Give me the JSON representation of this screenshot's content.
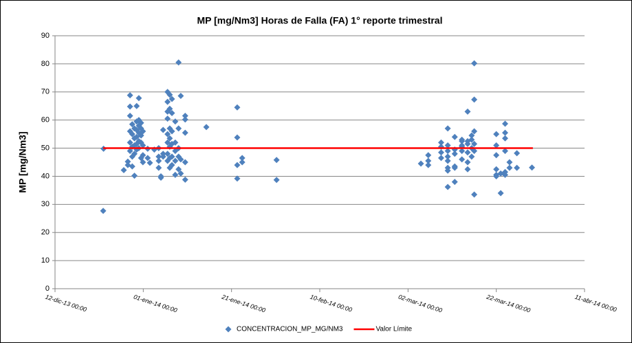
{
  "chart_data": {
    "type": "scatter",
    "title": "MP [mg/Nm3] Horas de Falla (FA) 1° reporte trimestral",
    "ylabel": "MP [mg/Nm3]",
    "xlim": [
      "2013-12-12T00:00",
      "2014-04-11T00:00"
    ],
    "xticks": [
      {
        "value": "2013-12-12T00:00",
        "label": "12-dic-13 00:00"
      },
      {
        "value": "2014-01-01T00:00",
        "label": "01-ene-14 00:00"
      },
      {
        "value": "2014-01-21T00:00",
        "label": "21-ene-14 00:00"
      },
      {
        "value": "2014-02-10T00:00",
        "label": "10-feb-14 00:00"
      },
      {
        "value": "2014-03-02T00:00",
        "label": "02-mar-14 00:00"
      },
      {
        "value": "2014-03-22T00:00",
        "label": "22-mar-14 00:00"
      },
      {
        "value": "2014-04-11T00:00",
        "label": "11-abr-14 00:00"
      }
    ],
    "ylim": [
      0,
      90
    ],
    "yticks": [
      0,
      10,
      20,
      30,
      40,
      50,
      60,
      70,
      80,
      90
    ],
    "grid": true,
    "legend": "bottom",
    "series": [
      {
        "name": "CONCENTRACION_MP_MG/NM3",
        "color": "#4f81bd",
        "x": [
          "2013-12-22T22:00",
          "2013-12-23T00:00",
          "2013-12-27T14:00",
          "2013-12-28T12:00",
          "2013-12-28T12:00",
          "2013-12-29T00:00",
          "2013-12-29T00:00",
          "2013-12-29T00:00",
          "2013-12-29T00:00",
          "2013-12-29T00:00",
          "2013-12-29T00:00",
          "2013-12-29T12:00",
          "2013-12-29T12:00",
          "2013-12-29T12:00",
          "2013-12-29T12:00",
          "2013-12-29T12:00",
          "2013-12-30T00:00",
          "2013-12-30T00:00",
          "2013-12-30T00:00",
          "2013-12-30T00:00",
          "2013-12-30T00:00",
          "2013-12-30T12:00",
          "2013-12-30T12:00",
          "2013-12-30T12:00",
          "2013-12-30T12:00",
          "2013-12-30T12:00",
          "2013-12-30T12:00",
          "2013-12-31T00:00",
          "2013-12-31T00:00",
          "2013-12-31T00:00",
          "2013-12-31T00:00",
          "2013-12-31T00:00",
          "2013-12-31T00:00",
          "2013-12-31T12:00",
          "2013-12-31T12:00",
          "2013-12-31T12:00",
          "2013-12-31T12:00",
          "2013-12-31T12:00",
          "2013-12-31T22:00",
          "2013-12-31T22:00",
          "2013-12-31T22:00",
          "2013-12-31T22:00",
          "2014-01-02T00:00",
          "2014-01-02T00:00",
          "2014-01-02T12:00",
          "2014-01-03T12:00",
          "2014-01-04T12:00",
          "2014-01-04T12:00",
          "2014-01-04T12:00",
          "2014-01-04T12:00",
          "2014-01-05T00:00",
          "2014-01-05T00:00",
          "2014-01-05T12:00",
          "2014-01-05T12:00",
          "2014-01-05T12:00",
          "2014-01-06T12:00",
          "2014-01-06T12:00",
          "2014-01-06T12:00",
          "2014-01-06T12:00",
          "2014-01-06T12:00",
          "2014-01-06T12:00",
          "2014-01-06T12:00",
          "2014-01-06T12:00",
          "2014-01-07T00:00",
          "2014-01-07T00:00",
          "2014-01-07T00:00",
          "2014-01-07T00:00",
          "2014-01-07T00:00",
          "2014-01-07T00:00",
          "2014-01-07T00:00",
          "2014-01-07T12:00",
          "2014-01-07T12:00",
          "2014-01-07T12:00",
          "2014-01-07T12:00",
          "2014-01-07T12:00",
          "2014-01-07T12:00",
          "2014-01-08T06:00",
          "2014-01-08T06:00",
          "2014-01-08T06:00",
          "2014-01-08T06:00",
          "2014-01-08T06:00",
          "2014-01-09T00:00",
          "2014-01-09T00:00",
          "2014-01-09T00:00",
          "2014-01-09T00:00",
          "2014-01-09T00:00",
          "2014-01-09T12:00",
          "2014-01-09T12:00",
          "2014-01-09T12:00",
          "2014-01-10T12:00",
          "2014-01-10T12:00",
          "2014-01-10T12:00",
          "2014-01-10T12:00",
          "2014-01-10T12:00",
          "2014-01-15T07:00",
          "2014-01-22T07:00",
          "2014-01-22T07:00",
          "2014-01-22T07:00",
          "2014-01-22T07:00",
          "2014-01-23T10:00",
          "2014-01-23T10:00",
          "2014-01-31T05:00",
          "2014-01-31T05:00",
          "2014-03-04T22:00",
          "2014-03-06T14:00",
          "2014-03-06T14:00",
          "2014-03-06T14:00",
          "2014-03-09T12:00",
          "2014-03-09T12:00",
          "2014-03-09T12:00",
          "2014-03-09T12:00",
          "2014-03-11T00:00",
          "2014-03-11T00:00",
          "2014-03-11T00:00",
          "2014-03-11T00:00",
          "2014-03-11T00:00",
          "2014-03-11T00:00",
          "2014-03-11T00:00",
          "2014-03-11T00:00",
          "2014-03-12T14:00",
          "2014-03-12T14:00",
          "2014-03-12T14:00",
          "2014-03-12T14:00",
          "2014-03-12T14:00",
          "2014-03-12T14:00",
          "2014-03-14T05:00",
          "2014-03-14T05:00",
          "2014-03-14T05:00",
          "2014-03-14T05:00",
          "2014-03-14T05:00",
          "2014-03-14T05:00",
          "2014-03-15T12:00",
          "2014-03-15T12:00",
          "2014-03-15T12:00",
          "2014-03-15T12:00",
          "2014-03-15T12:00",
          "2014-03-15T12:00",
          "2014-03-16T10:00",
          "2014-03-16T10:00",
          "2014-03-16T10:00",
          "2014-03-16T10:00",
          "2014-03-17T00:00",
          "2014-03-17T00:00",
          "2014-03-17T00:00",
          "2014-03-17T00:00",
          "2014-03-17T00:00",
          "2014-03-17T00:00",
          "2014-03-22T00:00",
          "2014-03-22T00:00",
          "2014-03-22T00:00",
          "2014-03-22T00:00",
          "2014-03-22T00:00",
          "2014-03-22T00:00",
          "2014-03-23T00:00",
          "2014-03-23T00:00",
          "2014-03-24T00:00",
          "2014-03-24T00:00",
          "2014-03-24T00:00",
          "2014-03-24T00:00",
          "2014-03-24T00:00",
          "2014-03-24T00:00",
          "2014-03-25T00:00",
          "2014-03-25T00:00",
          "2014-03-26T16:00",
          "2014-03-26T16:00",
          "2014-03-30T02:00"
        ],
        "values": [
          27.7,
          49.8,
          42.2,
          44,
          45.2,
          68.8,
          64.8,
          61.5,
          56,
          52,
          49,
          58.5,
          55,
          50.5,
          47,
          43.5,
          57,
          53.5,
          51,
          48,
          40.2,
          65,
          59.5,
          56.5,
          54,
          51.5,
          49.5,
          67.8,
          60,
          58,
          55.5,
          52.5,
          50,
          59,
          57,
          54.5,
          52,
          46.5,
          56,
          51,
          47.5,
          45,
          49.8,
          46.5,
          44.8,
          49.5,
          43,
          45.5,
          47,
          50,
          39.5,
          40,
          48,
          47,
          56.5,
          70,
          66.5,
          63,
          60.5,
          55,
          52,
          48,
          45.5,
          69,
          64,
          57,
          53.5,
          50.5,
          46.5,
          43,
          67.5,
          62.5,
          56,
          51.5,
          47,
          44,
          59.5,
          52,
          49,
          45.5,
          40.5,
          80.5,
          57,
          50,
          47,
          42.5,
          68.6,
          41,
          46,
          61.5,
          55.5,
          45,
          38.8,
          60.2,
          57.5,
          64.5,
          53.8,
          44,
          39.2,
          46.5,
          45,
          45.8,
          38.7,
          44.5,
          47.5,
          45.5,
          44,
          46.5,
          48.5,
          52,
          50.5,
          57,
          43,
          36.2,
          42,
          45.5,
          49,
          51,
          47,
          54,
          49.5,
          43.5,
          38,
          48,
          43,
          52.5,
          50.5,
          46,
          51,
          49,
          53,
          63,
          52.5,
          45,
          42.5,
          51.5,
          48.5,
          53,
          47,
          50,
          54.5,
          80.2,
          67.3,
          56,
          51.5,
          33.5,
          49,
          55,
          51,
          47.5,
          42.5,
          40.5,
          40,
          34,
          41,
          58.7,
          55.5,
          53.5,
          49,
          41.5,
          40.5,
          45,
          43,
          48.2,
          43,
          43.1
        ]
      },
      {
        "name": "Valor Límite",
        "type": "line",
        "color": "#ff0000",
        "x": [
          "2013-12-22T22:00",
          "2014-03-30T07:00"
        ],
        "values": [
          50,
          50
        ]
      }
    ]
  }
}
